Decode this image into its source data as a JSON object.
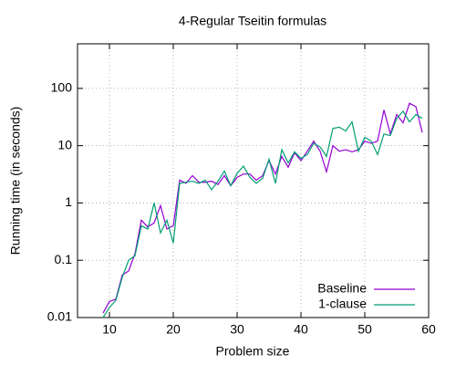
{
  "chart_data": {
    "type": "line",
    "title": "4-Regular Tseitin formulas",
    "x_label": "Problem size",
    "y_label": "Running time (in seconds)",
    "x": [
      9,
      10,
      11,
      12,
      13,
      14,
      15,
      16,
      17,
      18,
      19,
      20,
      21,
      22,
      23,
      24,
      25,
      26,
      27,
      28,
      29,
      30,
      31,
      32,
      33,
      34,
      35,
      36,
      37,
      38,
      39,
      40,
      41,
      42,
      43,
      44,
      45,
      46,
      47,
      48,
      49,
      50,
      51,
      52,
      53,
      54,
      55,
      56,
      57,
      58,
      59
    ],
    "series": [
      {
        "name": "Baseline",
        "color": "#9400d3",
        "values": [
          0.012,
          0.019,
          0.021,
          0.055,
          0.065,
          0.13,
          0.5,
          0.38,
          0.45,
          0.9,
          0.35,
          0.4,
          2.5,
          2.2,
          3.0,
          2.3,
          2.3,
          2.4,
          2.1,
          3.0,
          2.0,
          2.8,
          3.2,
          3.2,
          2.5,
          3.0,
          5.5,
          3.2,
          6.5,
          4.2,
          7.5,
          5.5,
          8,
          12,
          8,
          3.5,
          10,
          8,
          8.5,
          7.8,
          8.5,
          12,
          11,
          12,
          42,
          16,
          35,
          25,
          55,
          48,
          17
        ]
      },
      {
        "name": "1-clause",
        "color": "#009e73",
        "values": [
          0.01,
          0.015,
          0.02,
          0.05,
          0.1,
          0.12,
          0.4,
          0.35,
          1.0,
          0.3,
          0.5,
          0.2,
          2.2,
          2.3,
          2.4,
          2.2,
          2.5,
          1.7,
          2.4,
          3.6,
          2.0,
          3.3,
          4.4,
          2.8,
          2.2,
          2.7,
          5.8,
          2.2,
          8.5,
          5.0,
          7.8,
          6.0,
          7.0,
          11,
          9.5,
          6.5,
          20,
          21,
          18,
          26,
          8,
          14,
          12,
          7,
          16,
          15,
          30,
          40,
          26,
          35,
          30
        ]
      }
    ],
    "xlim": [
      5,
      60
    ],
    "xticks": [
      10,
      20,
      30,
      40,
      50,
      60
    ],
    "ylim": [
      0.01,
      600
    ],
    "yticks": [
      0.01,
      0.1,
      1,
      10,
      100
    ],
    "log_y": true,
    "grid": true,
    "legend": "lower right"
  }
}
